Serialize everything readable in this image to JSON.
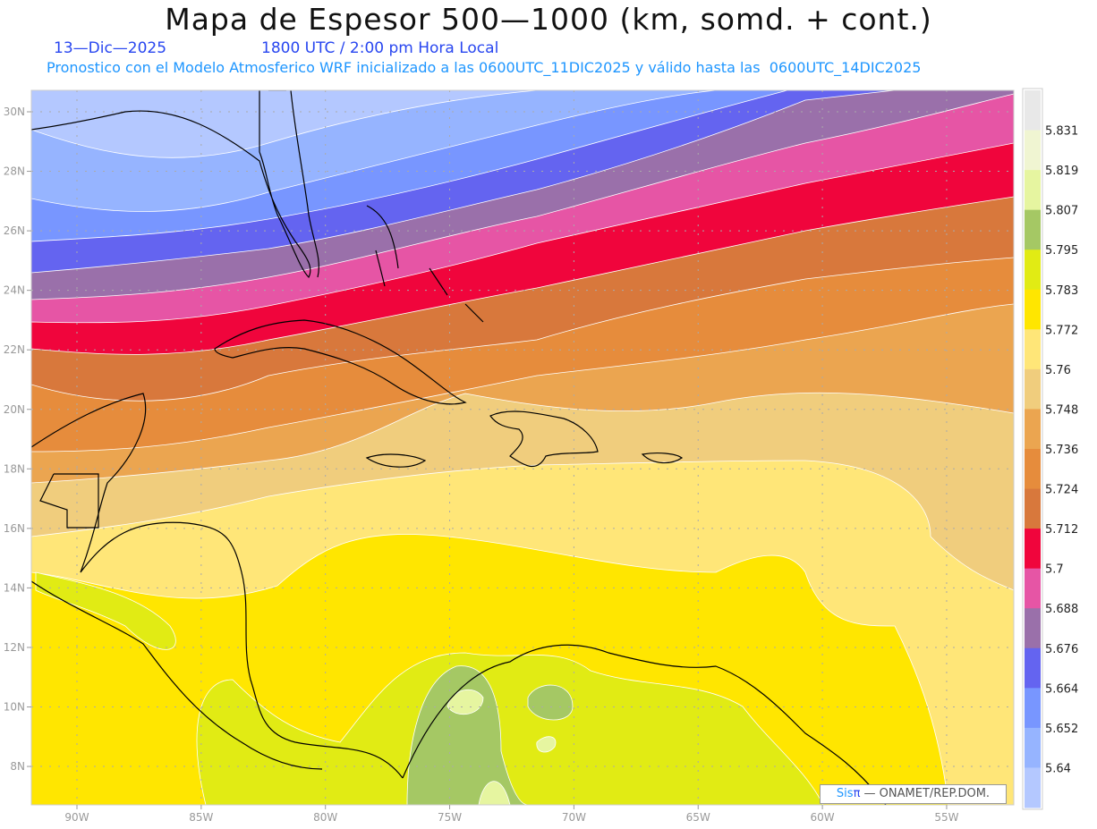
{
  "header": {
    "title": "Mapa de Espesor 500—1000 (km, somd. + cont.)",
    "date": "13—Dic—2025",
    "time": "1800 UTC / 2:00 pm Hora Local",
    "subtitle": "Pronostico con el Modelo Atmosferico WRF inicializado a las 0600UTC_11DIC2025 y válido hasta las  0600UTC_14DIC2025"
  },
  "axes": {
    "lat_labels": [
      "30N",
      "28N",
      "26N",
      "24N",
      "22N",
      "20N",
      "18N",
      "16N",
      "14N",
      "12N",
      "10N",
      "8N"
    ],
    "lon_labels": [
      "90W",
      "85W",
      "80W",
      "75W",
      "70W",
      "65W",
      "60W",
      "55W"
    ]
  },
  "colorbar": {
    "labels": [
      "5.831",
      "5.819",
      "5.807",
      "5.795",
      "5.783",
      "5.772",
      "5.76",
      "5.748",
      "5.736",
      "5.724",
      "5.712",
      "5.7",
      "5.688",
      "5.676",
      "5.664",
      "5.652",
      "5.64"
    ],
    "colors": [
      "#e8e8e8",
      "#f0f5d2",
      "#e6f5a0",
      "#a5c864",
      "#e1eb14",
      "#ffe600",
      "#ffe678",
      "#f0cd7d",
      "#eba550",
      "#e68c3c",
      "#d8783c",
      "#f0053c",
      "#e655a5",
      "#9a70aa",
      "#6464f0",
      "#7896ff",
      "#96b4ff",
      "#b4c8ff"
    ]
  },
  "credit": {
    "sis": "Sis",
    "pi": "π",
    "rest": "—  ONAMET/REP.DOM."
  }
}
